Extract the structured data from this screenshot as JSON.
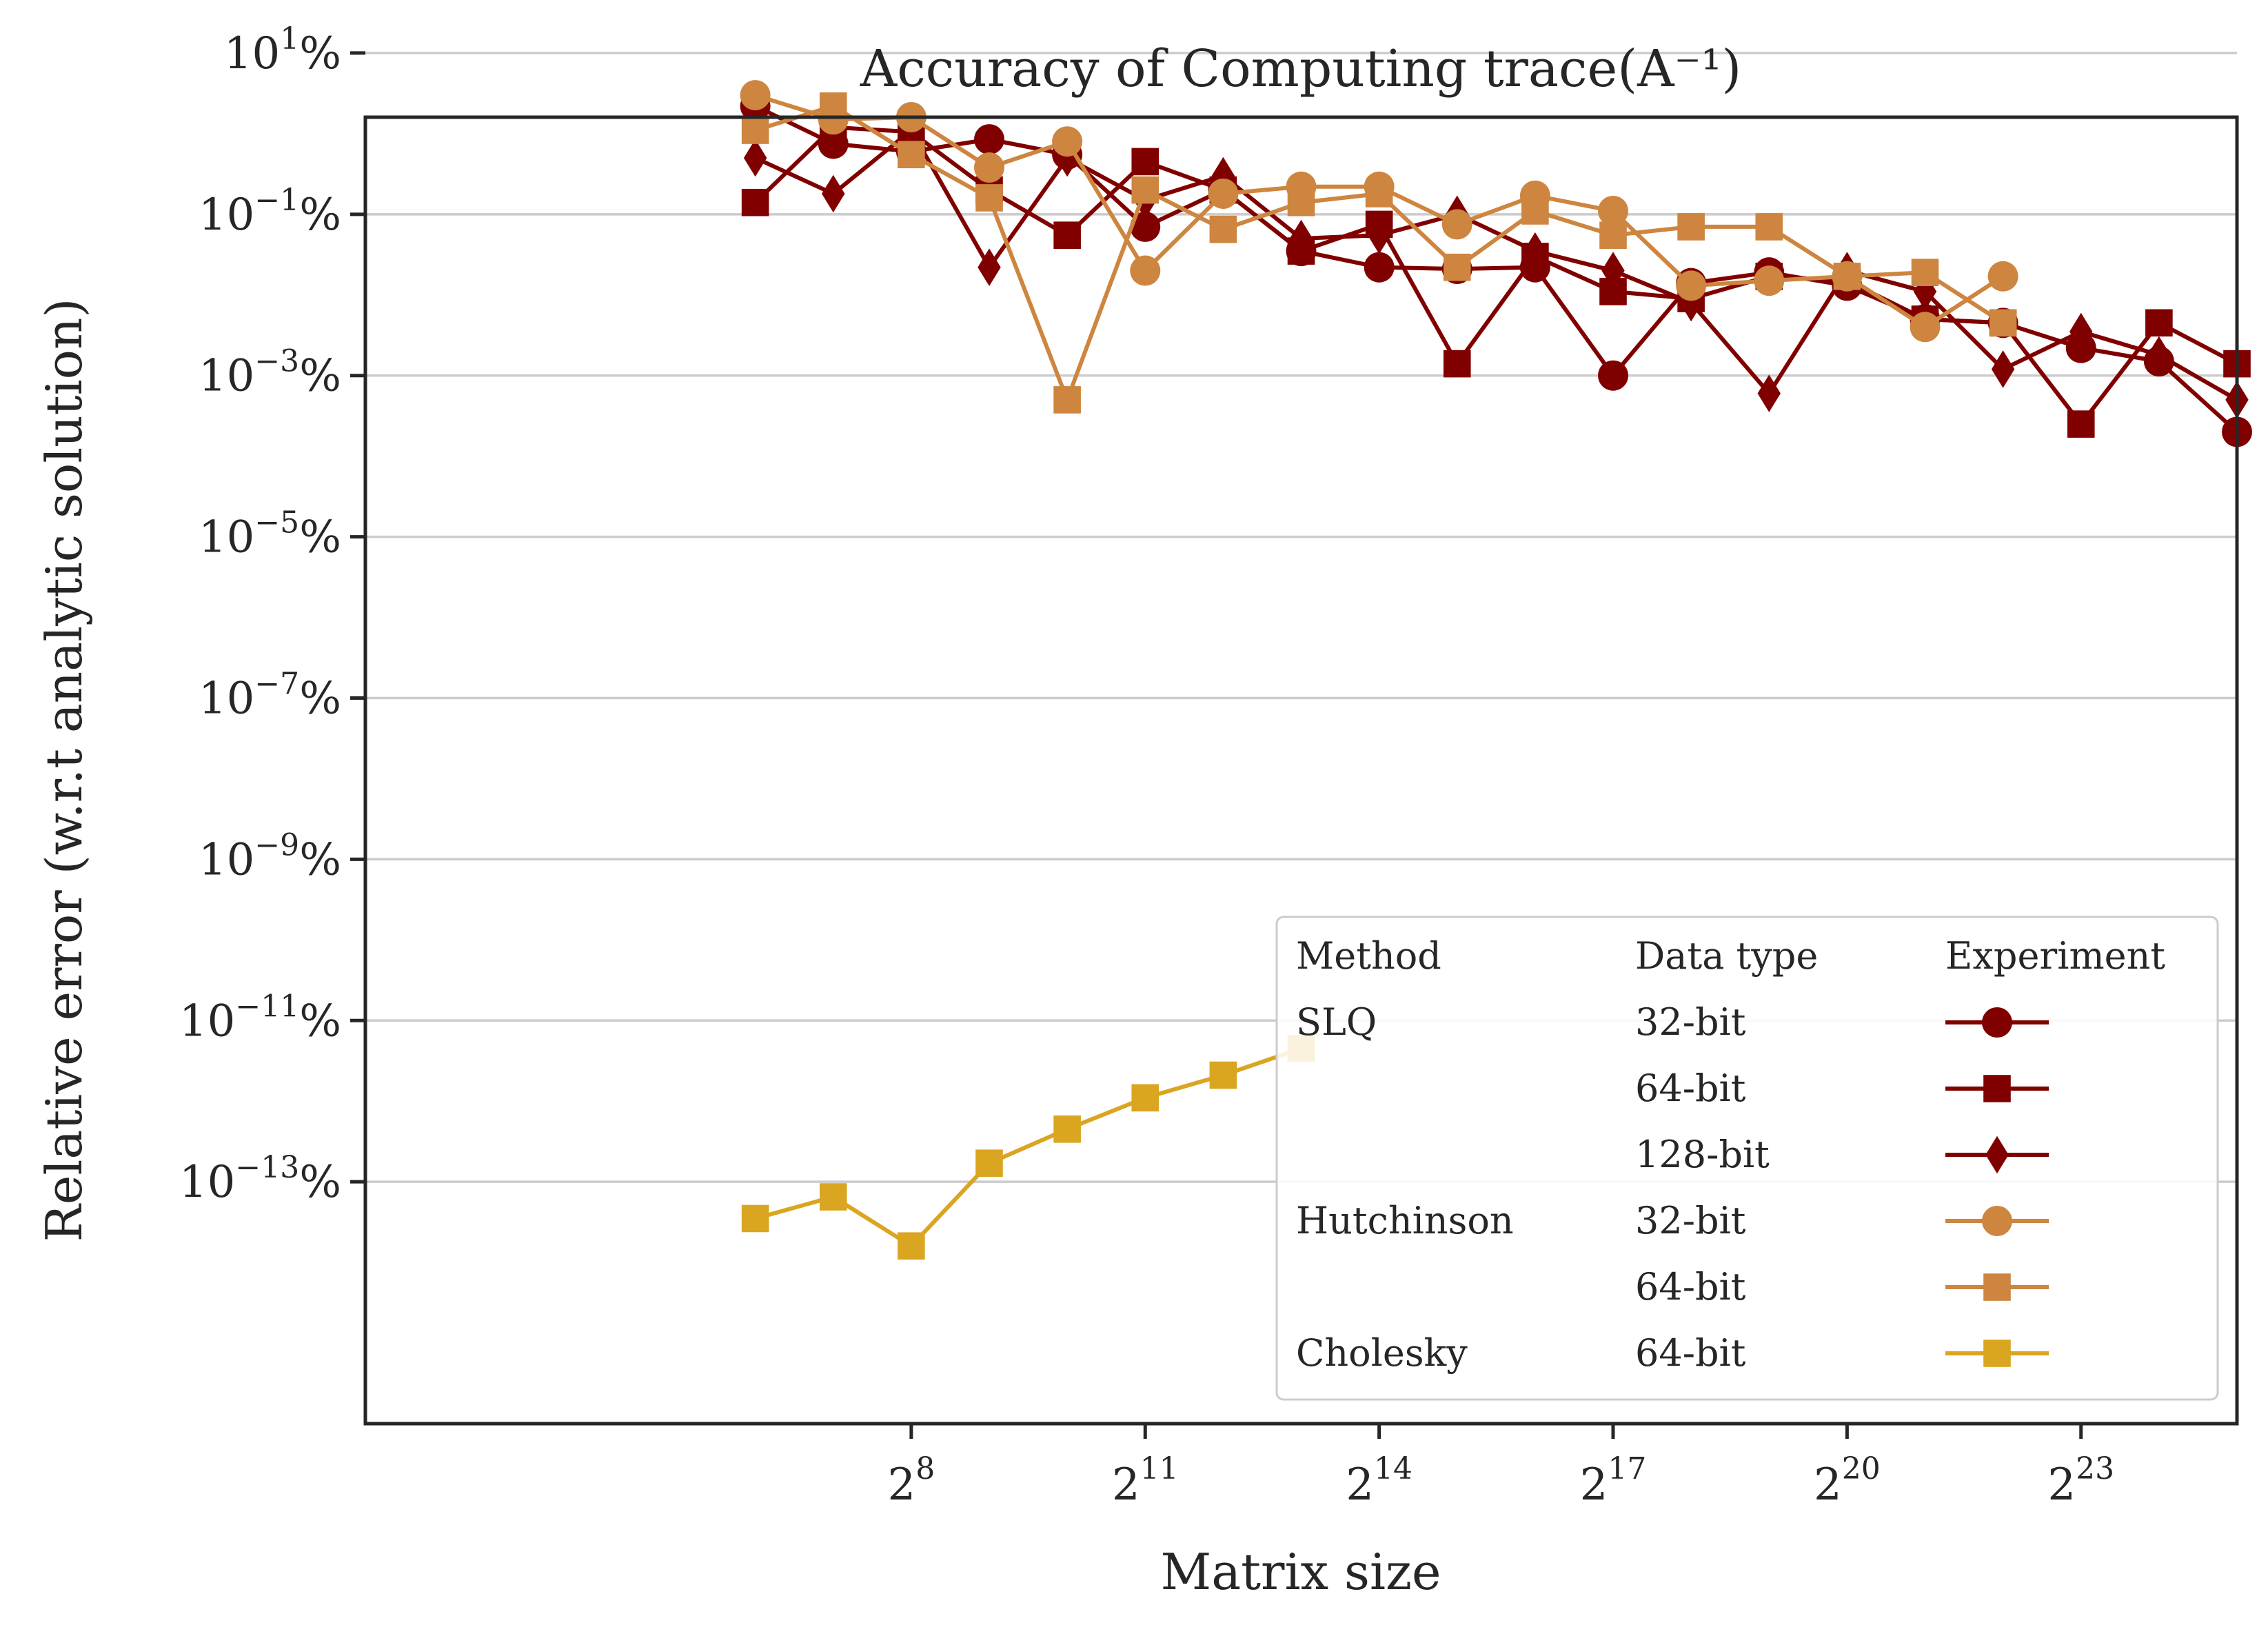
{
  "chart_data": {
    "type": "line",
    "title": "Accuracy of Computing trace(A⁻¹)",
    "xlabel": "Matrix size",
    "ylabel": "Relative error (w.r.t analytic solution)",
    "x_scale": "log2",
    "y_scale": "log10",
    "xlim": [
      2.0,
      33554432
    ],
    "ylim": [
      1e-16,
      1.6
    ],
    "grid": "y-major",
    "x_ticks": [
      {
        "value": 256,
        "base": "2",
        "exp": "8"
      },
      {
        "value": 2048,
        "base": "2",
        "exp": "11"
      },
      {
        "value": 16384,
        "base": "2",
        "exp": "14"
      },
      {
        "value": 131072,
        "base": "2",
        "exp": "17"
      },
      {
        "value": 1048576,
        "base": "2",
        "exp": "20"
      },
      {
        "value": 8388608,
        "base": "2",
        "exp": "23"
      }
    ],
    "y_ticks": [
      {
        "value": 10,
        "base": "10",
        "exp": "1",
        "unit": "%"
      },
      {
        "value": 0.1,
        "base": "10",
        "exp": "−1",
        "unit": "%"
      },
      {
        "value": 0.001,
        "base": "10",
        "exp": "−3",
        "unit": "%"
      },
      {
        "value": 1e-05,
        "base": "10",
        "exp": "−5",
        "unit": "%"
      },
      {
        "value": 1e-07,
        "base": "10",
        "exp": "−7",
        "unit": "%"
      },
      {
        "value": 1e-09,
        "base": "10",
        "exp": "−9",
        "unit": "%"
      },
      {
        "value": 1e-11,
        "base": "10",
        "exp": "−11",
        "unit": "%"
      },
      {
        "value": 1e-13,
        "base": "10",
        "exp": "−13",
        "unit": "%"
      }
    ],
    "legend": {
      "placement": "lower-right",
      "headers": [
        "Method",
        "Data type",
        "Experiment"
      ],
      "rows": [
        {
          "method": "SLQ",
          "dtype": "32-bit"
        },
        {
          "method": "",
          "dtype": "64-bit"
        },
        {
          "method": "",
          "dtype": "128-bit"
        },
        {
          "method": "Hutchinson",
          "dtype": "32-bit"
        },
        {
          "method": "",
          "dtype": "64-bit"
        },
        {
          "method": "Cholesky",
          "dtype": "64-bit"
        }
      ]
    },
    "series": [
      {
        "method": "SLQ",
        "dtype": "32-bit",
        "color": "#800000",
        "marker": "circle",
        "x": [
          64,
          128,
          256,
          512,
          1024,
          2048,
          4096,
          8192,
          16384,
          32768,
          65536,
          131072,
          262144,
          524288,
          1048576,
          2097152,
          4194304,
          8388608,
          16777216,
          33554432
        ],
        "y": [
          2.2,
          0.75,
          0.6,
          0.85,
          0.55,
          0.07,
          0.2,
          0.035,
          0.022,
          0.021,
          0.022,
          0.001,
          0.014,
          0.019,
          0.013,
          0.005,
          0.0045,
          0.0022,
          0.0015,
          0.0002
        ]
      },
      {
        "method": "SLQ",
        "dtype": "64-bit",
        "color": "#800000",
        "marker": "square",
        "x": [
          64,
          128,
          256,
          512,
          1024,
          2048,
          4096,
          8192,
          16384,
          32768,
          65536,
          131072,
          262144,
          524288,
          1048576,
          2097152,
          4194304,
          8388608,
          16777216,
          33554432
        ],
        "y": [
          0.14,
          1.2,
          1.05,
          0.2,
          0.055,
          0.45,
          0.2,
          0.035,
          0.075,
          0.0014,
          0.03,
          0.011,
          0.009,
          0.017,
          0.015,
          0.005,
          0.0045,
          0.00025,
          0.0045,
          0.0014
        ]
      },
      {
        "method": "SLQ",
        "dtype": "128-bit",
        "color": "#800000",
        "marker": "diamond",
        "x": [
          64,
          128,
          256,
          512,
          1024,
          2048,
          4096,
          8192,
          16384,
          32768,
          65536,
          131072,
          262144,
          524288,
          1048576,
          2097152,
          4194304,
          8388608,
          16777216,
          33554432
        ],
        "y": [
          0.5,
          0.18,
          1.1,
          0.022,
          0.5,
          0.15,
          0.3,
          0.05,
          0.055,
          0.1,
          0.035,
          0.02,
          0.008,
          0.0006,
          0.02,
          0.011,
          0.0012,
          0.0035,
          0.0018,
          0.0005
        ]
      },
      {
        "method": "Hutchinson",
        "dtype": "32-bit",
        "color": "#cd853f",
        "marker": "circle",
        "x": [
          64,
          128,
          256,
          512,
          1024,
          2048,
          4096,
          8192,
          16384,
          32768,
          65536,
          131072,
          262144,
          524288,
          1048576,
          2097152,
          4194304
        ],
        "y": [
          3.0,
          1.5,
          1.6,
          0.38,
          0.8,
          0.02,
          0.18,
          0.22,
          0.22,
          0.075,
          0.17,
          0.11,
          0.013,
          0.015,
          0.017,
          0.004,
          0.017
        ]
      },
      {
        "method": "Hutchinson",
        "dtype": "64-bit",
        "color": "#cd853f",
        "marker": "square",
        "x": [
          64,
          128,
          256,
          512,
          1024,
          2048,
          4096,
          8192,
          16384,
          32768,
          65536,
          131072,
          262144,
          524288,
          1048576,
          2097152,
          4194304
        ],
        "y": [
          1.1,
          2.2,
          0.55,
          0.16,
          0.0005,
          0.2,
          0.065,
          0.14,
          0.18,
          0.022,
          0.11,
          0.055,
          0.07,
          0.07,
          0.017,
          0.019,
          0.0045
        ]
      },
      {
        "method": "Cholesky",
        "dtype": "64-bit",
        "color": "#daa520",
        "marker": "square",
        "x": [
          64,
          128,
          256,
          512,
          1024,
          2048,
          4096,
          8192
        ],
        "y": [
          3.5e-14,
          6.5e-14,
          1.6e-14,
          1.7e-13,
          4.5e-13,
          1.1e-12,
          2.1e-12,
          4.5e-12
        ]
      }
    ]
  }
}
